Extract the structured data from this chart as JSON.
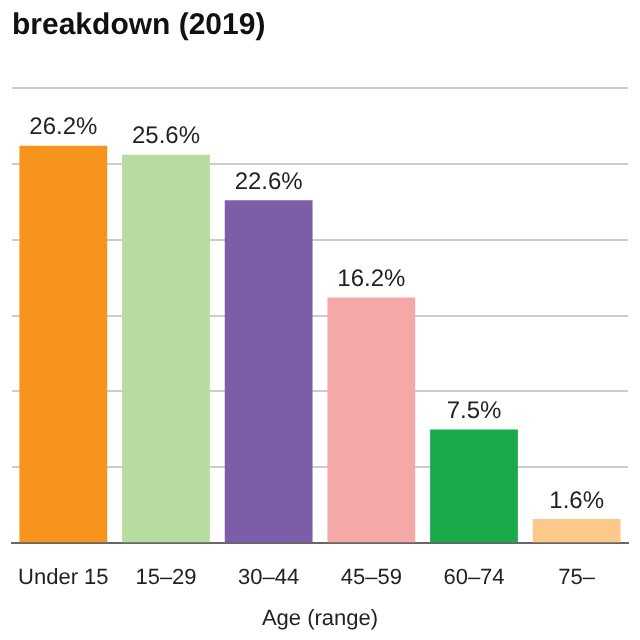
{
  "chart_data": {
    "type": "bar",
    "title": "breakdown (2019)",
    "xlabel": "Age (range)",
    "categories": [
      "Under 15",
      "15–29",
      "30–44",
      "45–59",
      "60–74",
      "75–"
    ],
    "values": [
      26.2,
      25.6,
      22.6,
      16.2,
      7.5,
      1.6
    ],
    "colors": [
      "#f7941d",
      "#b8dba0",
      "#7b5ea7",
      "#f4a9a8",
      "#1aaa4b",
      "#fbc98a"
    ],
    "value_labels": [
      "26.2%",
      "25.6%",
      "22.6%",
      "16.2%",
      "7.5%",
      "1.6%"
    ],
    "ylim": [
      0,
      30
    ],
    "yticks": [
      0,
      5,
      10,
      15,
      20,
      25,
      30
    ],
    "grid": "y",
    "tick_labels": "x"
  }
}
